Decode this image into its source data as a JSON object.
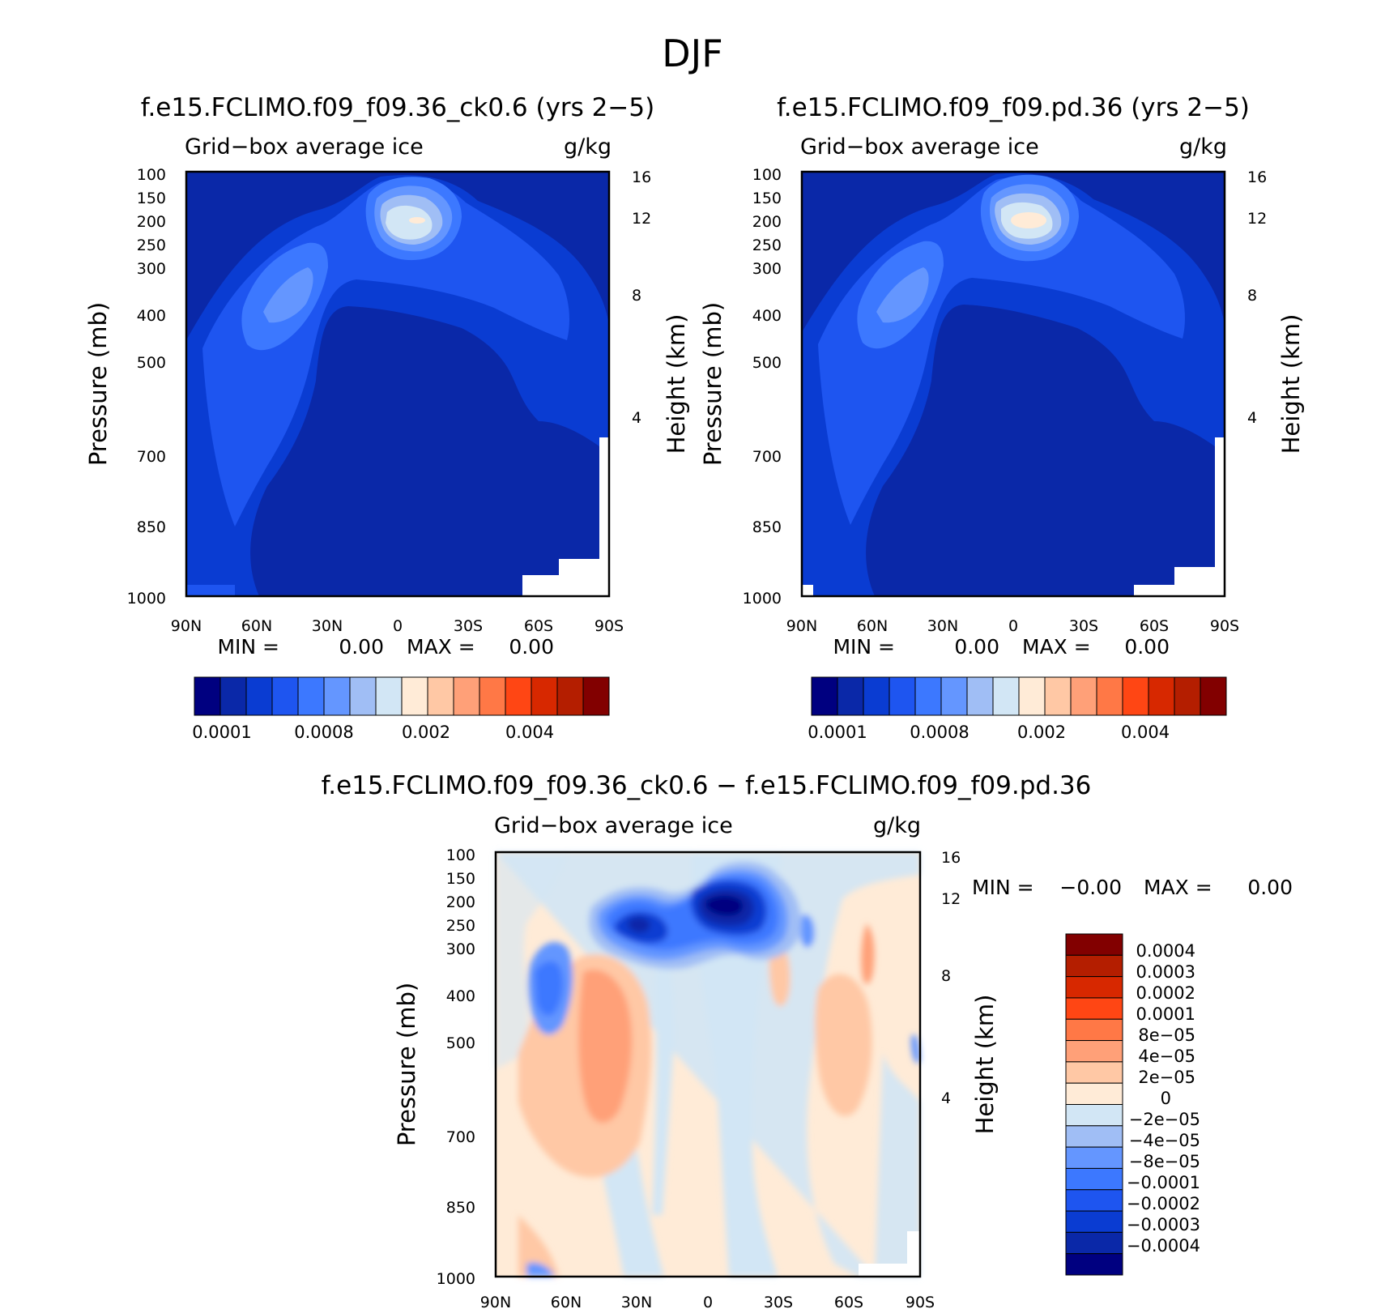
{
  "page": {
    "season": "DJF"
  },
  "chart_data": [
    {
      "type": "heatmap",
      "title": "f.e15.FCLIMO.f09_f09.36_ck0.6 (yrs 2−5)",
      "subtitle_left": "Grid−box average ice",
      "units": "g/kg",
      "ylabel": "Pressure (mb)",
      "ylabel_right": "Height (km)",
      "x_ticks": [
        "90N",
        "60N",
        "30N",
        "0",
        "30S",
        "60S",
        "90S"
      ],
      "y_ticks": [
        "100",
        "150",
        "200",
        "250",
        "300",
        "400",
        "500",
        "700",
        "850",
        "1000"
      ],
      "y_ticks_right": [
        "16",
        "12",
        "8",
        "4"
      ],
      "min_label": "MIN =",
      "min_value": "0.00",
      "max_label": "MAX =",
      "max_value": "0.00",
      "colorbar_labels": [
        "0.0001",
        "0.0008",
        "0.002",
        "0.004"
      ],
      "levels": 16
    },
    {
      "type": "heatmap",
      "title": "f.e15.FCLIMO.f09_f09.pd.36 (yrs 2−5)",
      "subtitle_left": "Grid−box average ice",
      "units": "g/kg",
      "ylabel": "Pressure (mb)",
      "ylabel_right": "Height (km)",
      "x_ticks": [
        "90N",
        "60N",
        "30N",
        "0",
        "30S",
        "60S",
        "90S"
      ],
      "y_ticks": [
        "100",
        "150",
        "200",
        "250",
        "300",
        "400",
        "500",
        "700",
        "850",
        "1000"
      ],
      "y_ticks_right": [
        "16",
        "12",
        "8",
        "4"
      ],
      "min_label": "MIN =",
      "min_value": "0.00",
      "max_label": "MAX =",
      "max_value": "0.00",
      "colorbar_labels": [
        "0.0001",
        "0.0008",
        "0.002",
        "0.004"
      ],
      "levels": 16
    },
    {
      "type": "heatmap",
      "title": "f.e15.FCLIMO.f09_f09.36_ck0.6 − f.e15.FCLIMO.f09_f09.pd.36",
      "subtitle_left": "Grid−box average ice",
      "units": "g/kg",
      "ylabel": "Pressure (mb)",
      "ylabel_right": "Height (km)",
      "x_ticks": [
        "90N",
        "60N",
        "30N",
        "0",
        "30S",
        "60S",
        "90S"
      ],
      "y_ticks": [
        "100",
        "150",
        "200",
        "250",
        "300",
        "400",
        "500",
        "700",
        "850",
        "1000"
      ],
      "y_ticks_right": [
        "16",
        "12",
        "8",
        "4"
      ],
      "min_label": "MIN =",
      "min_value": "−0.00",
      "max_label": "MAX =",
      "max_value": "0.00",
      "colorbar_labels": [
        "0.0004",
        "0.0003",
        "0.0002",
        "0.0001",
        "8e−05",
        "4e−05",
        "2e−05",
        "0",
        "−2e−05",
        "−4e−05",
        "−8e−05",
        "−0.0001",
        "−0.0002",
        "−0.0003",
        "−0.0004"
      ]
    }
  ],
  "colors": {
    "sequential": [
      "#000080",
      "#0a28a8",
      "#0a3cd2",
      "#1e55f0",
      "#3c78ff",
      "#6496ff",
      "#a0bef5",
      "#d2e6f5",
      "#ffebd7",
      "#ffc8a5",
      "#ffa078",
      "#ff7846",
      "#ff4614",
      "#d72800",
      "#b41e00",
      "#820000"
    ],
    "diverging": [
      "#820000",
      "#b41e00",
      "#d72800",
      "#ff4614",
      "#ff7846",
      "#ffa078",
      "#ffc8a5",
      "#ffebd7",
      "#d2e6f5",
      "#a0bef5",
      "#6496ff",
      "#3c78ff",
      "#1e55f0",
      "#0a3cd2",
      "#0a28a8",
      "#000080"
    ]
  }
}
